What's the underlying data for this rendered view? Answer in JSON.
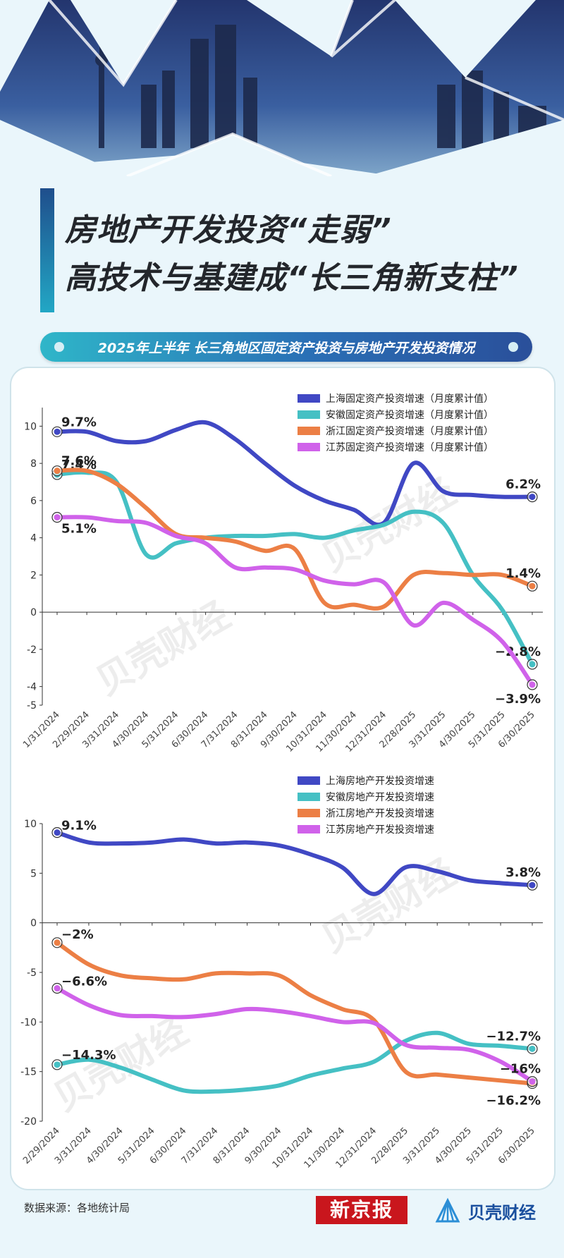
{
  "title": {
    "line1": "房地产开发投资“走弱”",
    "line2": "高技术与基建成“长三角新支柱”"
  },
  "subtitle": "2025年上半年 长三角地区固定资产投资与房地产开发投资情况",
  "watermark": "贝壳财经",
  "footer": {
    "source": "数据来源：各地统计局",
    "logo_xjb": "新京报",
    "logo_bk": "贝壳财经"
  },
  "colors": {
    "shanghai": "#4048c4",
    "anhui": "#45c0c4",
    "zhejiang": "#ec7f45",
    "jiangsu": "#d062ea"
  },
  "chart_data": [
    {
      "type": "line",
      "title": "",
      "legend_position": "top-right",
      "grid": false,
      "ylim": [
        -5,
        11
      ],
      "y_ticks": [
        10,
        8,
        6,
        4,
        2,
        0,
        -2,
        -4,
        -5
      ],
      "categories": [
        "1/31/2024",
        "2/29/2024",
        "3/31/2024",
        "4/30/2024",
        "5/31/2024",
        "6/30/2024",
        "7/31/2024",
        "8/31/2024",
        "9/30/2024",
        "10/31/2024",
        "11/30/2024",
        "12/31/2024",
        "2/28/2025",
        "3/31/2025",
        "4/30/2025",
        "5/31/2025",
        "6/30/2025"
      ],
      "series": [
        {
          "name": "上海固定资产投资增速（月度累计值）",
          "color_key": "shanghai",
          "values": [
            9.7,
            9.7,
            9.2,
            9.2,
            9.8,
            10.2,
            9.3,
            8.0,
            6.8,
            6.0,
            5.5,
            4.8,
            8.0,
            6.5,
            6.3,
            6.2,
            6.2
          ],
          "label_start": "9.7%",
          "label_end": "6.2%"
        },
        {
          "name": "安徽固定资产投资增速（月度累计值）",
          "color_key": "anhui",
          "values": [
            7.4,
            7.5,
            7.0,
            3.1,
            3.7,
            4.0,
            4.1,
            4.1,
            4.2,
            4.0,
            4.4,
            4.7,
            5.4,
            4.8,
            2.0,
            0.1,
            -2.8
          ],
          "label_start": "7.4%",
          "label_end": "-2.8%"
        },
        {
          "name": "浙江固定资产投资增速（月度累计值）",
          "color_key": "zhejiang",
          "values": [
            7.6,
            7.6,
            6.9,
            5.6,
            4.2,
            4.0,
            3.8,
            3.3,
            3.4,
            0.5,
            0.4,
            0.3,
            2.0,
            2.1,
            2.0,
            2.0,
            1.4
          ],
          "label_start": "7.6%",
          "label_end": "1.4%"
        },
        {
          "name": "江苏固定资产投资增速（月度累计值）",
          "color_key": "jiangsu",
          "values": [
            5.1,
            5.1,
            4.9,
            4.8,
            4.1,
            3.7,
            2.4,
            2.4,
            2.3,
            1.7,
            1.5,
            1.6,
            -0.7,
            0.5,
            -0.4,
            -1.6,
            -3.9
          ],
          "label_start": "5.1%",
          "label_end": "-3.9%"
        }
      ]
    },
    {
      "type": "line",
      "title": "",
      "legend_position": "top-right",
      "grid": false,
      "ylim": [
        -20,
        10
      ],
      "y_ticks": [
        10,
        5,
        0,
        -5,
        -10,
        -15,
        -20
      ],
      "categories": [
        "2/29/2024",
        "3/31/2024",
        "4/30/2024",
        "5/31/2024",
        "6/30/2024",
        "7/31/2024",
        "8/31/2024",
        "9/30/2024",
        "10/31/2024",
        "11/30/2024",
        "12/31/2024",
        "2/28/2025",
        "3/31/2025",
        "4/30/2025",
        "5/31/2025",
        "6/30/2025"
      ],
      "series": [
        {
          "name": "上海房地产开发投资增速",
          "color_key": "shanghai",
          "values": [
            9.1,
            8.1,
            8.0,
            8.1,
            8.4,
            8.0,
            8.1,
            7.8,
            6.9,
            5.6,
            2.9,
            5.6,
            5.2,
            4.3,
            4.0,
            3.8
          ],
          "label_start": "9.1%",
          "label_end": "3.8%"
        },
        {
          "name": "安徽房地产开发投资增速",
          "color_key": "anhui",
          "values": [
            -14.3,
            -13.8,
            -14.6,
            -15.8,
            -16.9,
            -17.0,
            -16.8,
            -16.4,
            -15.4,
            -14.7,
            -14.0,
            -11.9,
            -11.1,
            -12.2,
            -12.4,
            -12.7
          ],
          "label_start": "-14.3%",
          "label_end": "-12.7%"
        },
        {
          "name": "浙江房地产开发投资增速",
          "color_key": "zhejiang",
          "values": [
            -2.0,
            -4.2,
            -5.3,
            -5.6,
            -5.7,
            -5.1,
            -5.1,
            -5.3,
            -7.3,
            -8.7,
            -9.8,
            -15.0,
            -15.3,
            -15.6,
            -15.9,
            -16.2
          ],
          "label_start": "-2%",
          "label_end": "-16.2%"
        },
        {
          "name": "江苏房地产开发投资增速",
          "color_key": "jiangsu",
          "values": [
            -6.6,
            -8.3,
            -9.3,
            -9.4,
            -9.5,
            -9.2,
            -8.7,
            -8.9,
            -9.4,
            -10.0,
            -10.1,
            -12.3,
            -12.6,
            -12.8,
            -14.0,
            -16.0
          ],
          "label_start": "-6.6%",
          "label_end": "-16%"
        }
      ]
    }
  ]
}
